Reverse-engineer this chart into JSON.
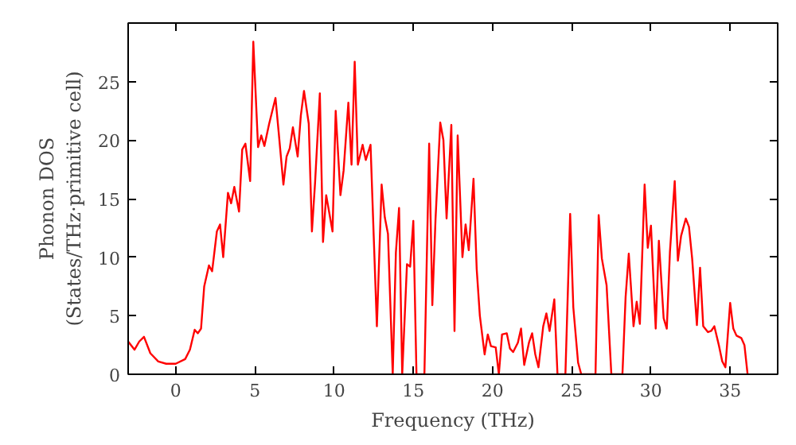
{
  "chart_data": {
    "type": "line",
    "xlabel": "Frequency (THz)",
    "ylabel": "Phonon DOS\n(States/THz·primitive cell)",
    "xlim": [
      -3,
      38
    ],
    "ylim": [
      0,
      30
    ],
    "xticks": [
      0,
      5,
      10,
      15,
      20,
      25,
      30,
      35
    ],
    "yticks": [
      0,
      5,
      10,
      15,
      20,
      25
    ],
    "grid": false,
    "marker": "none",
    "line_style": "solid",
    "series": [
      {
        "color": "#ff0000",
        "x": [
          -3,
          -2.6,
          -2.3,
          -2.0,
          -1.6,
          -1.1,
          -0.6,
          0,
          0.6,
          0.9,
          1.2,
          1.4,
          1.6,
          1.8,
          2.1,
          2.3,
          2.6,
          2.8,
          3.0,
          3.3,
          3.5,
          3.7,
          4.0,
          4.2,
          4.4,
          4.7,
          4.9,
          5.2,
          5.4,
          5.6,
          5.9,
          6.3,
          6.5,
          6.8,
          7.0,
          7.2,
          7.4,
          7.7,
          7.9,
          8.1,
          8.4,
          8.6,
          8.8,
          9.1,
          9.3,
          9.5,
          9.9,
          10.1,
          10.4,
          10.6,
          10.9,
          11.1,
          11.3,
          11.5,
          11.8,
          12.0,
          12.3,
          12.5,
          12.7,
          13.0,
          13.2,
          13.4,
          13.7,
          13.9,
          14.1,
          14.3,
          14.6,
          14.8,
          15.0,
          15.2,
          15.7,
          16.0,
          16.2,
          16.4,
          16.7,
          16.9,
          17.1,
          17.4,
          17.6,
          17.8,
          18.1,
          18.3,
          18.5,
          18.8,
          19.0,
          19.2,
          19.5,
          19.7,
          19.9,
          20.2,
          20.4,
          20.6,
          20.9,
          21.1,
          21.3,
          21.6,
          21.8,
          22.0,
          22.3,
          22.5,
          22.7,
          22.9,
          23.2,
          23.4,
          23.6,
          23.9,
          24.1,
          24.6,
          24.9,
          25.1,
          25.4,
          25.6,
          26.5,
          26.7,
          26.9,
          27.2,
          27.5,
          28.2,
          28.4,
          28.6,
          28.9,
          29.1,
          29.3,
          29.6,
          29.8,
          30.0,
          30.3,
          30.5,
          30.8,
          31.0,
          31.2,
          31.5,
          31.7,
          31.9,
          32.2,
          32.4,
          32.6,
          32.9,
          33.1,
          33.3,
          33.6,
          33.8,
          34.0,
          34.3,
          34.5,
          34.7,
          35.0,
          35.2,
          35.4,
          35.7,
          35.9,
          36.1
        ],
        "values": [
          2.8,
          2.1,
          2.8,
          3.2,
          1.8,
          1.1,
          0.9,
          0.9,
          1.3,
          2.1,
          3.8,
          3.5,
          3.9,
          7.5,
          9.3,
          8.8,
          12.2,
          12.8,
          10.0,
          15.5,
          14.6,
          16.0,
          13.9,
          19.2,
          19.7,
          16.5,
          28.4,
          19.4,
          20.4,
          19.5,
          21.4,
          23.6,
          20.7,
          16.2,
          18.6,
          19.3,
          21.1,
          18.6,
          22.1,
          24.2,
          21.4,
          12.2,
          16.4,
          24.0,
          11.3,
          15.3,
          12.2,
          22.5,
          15.3,
          17.4,
          23.2,
          17.9,
          26.7,
          17.9,
          19.6,
          18.3,
          19.6,
          11.8,
          4.1,
          16.2,
          13.4,
          12.0,
          0,
          10.4,
          14.2,
          0,
          9.4,
          9.2,
          13.1,
          0,
          0,
          19.7,
          5.9,
          13.2,
          21.5,
          20.0,
          13.3,
          21.3,
          3.7,
          20.4,
          10.0,
          12.8,
          10.6,
          16.7,
          9.0,
          5.0,
          1.7,
          3.4,
          2.4,
          2.3,
          0,
          3.4,
          3.5,
          2.2,
          1.9,
          2.7,
          3.9,
          0.8,
          2.7,
          3.5,
          1.7,
          0.6,
          4.1,
          5.2,
          3.7,
          6.4,
          0,
          0,
          13.7,
          5.7,
          1.0,
          0,
          0,
          13.6,
          9.9,
          7.6,
          0,
          0,
          6.6,
          10.3,
          4.1,
          6.2,
          4.3,
          16.2,
          10.8,
          12.7,
          3.9,
          11.4,
          4.8,
          3.9,
          10.5,
          16.5,
          9.7,
          11.8,
          13.3,
          12.6,
          9.9,
          4.2,
          9.1,
          4.1,
          3.6,
          3.7,
          4.1,
          2.4,
          1.1,
          0.6,
          6.1,
          3.9,
          3.3,
          3.1,
          2.5,
          0
        ]
      }
    ]
  }
}
